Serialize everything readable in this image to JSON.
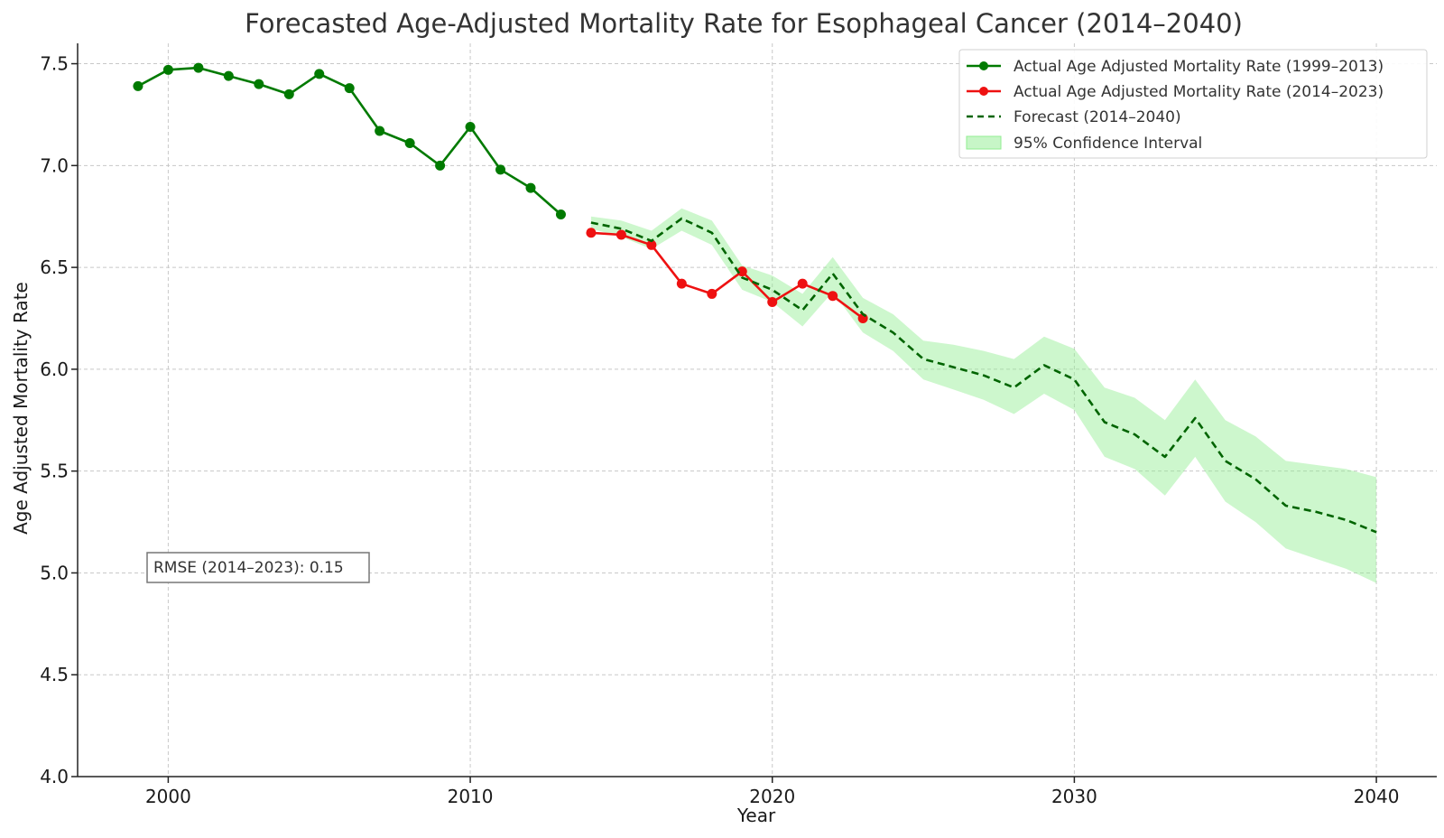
{
  "chart_data": {
    "type": "line",
    "title": "Forecasted Age-Adjusted Mortality Rate for Esophageal Cancer (2014–2040)",
    "xlabel": "Year",
    "ylabel": "Age Adjusted Mortality Rate",
    "xlim": [
      1997,
      2042
    ],
    "ylim": [
      4.0,
      7.6
    ],
    "xticks": [
      2000,
      2010,
      2020,
      2030,
      2040
    ],
    "yticks": [
      4.0,
      4.5,
      5.0,
      5.5,
      6.0,
      6.5,
      7.0,
      7.5
    ],
    "grid": true,
    "legend_position": "top-right",
    "annotation": "RMSE (2014–2023): 0.15",
    "series": [
      {
        "name": "Actual Age Adjusted Mortality Rate (1999–2013)",
        "style": "line-marker",
        "color": "#007a00",
        "x": [
          1999,
          2000,
          2001,
          2002,
          2003,
          2004,
          2005,
          2006,
          2007,
          2008,
          2009,
          2010,
          2011,
          2012,
          2013
        ],
        "y": [
          7.39,
          7.47,
          7.48,
          7.44,
          7.4,
          7.35,
          7.45,
          7.38,
          7.17,
          7.11,
          7.0,
          7.19,
          6.98,
          6.89,
          6.76
        ]
      },
      {
        "name": "Actual Age Adjusted Mortality Rate (2014–2023)",
        "style": "line-marker",
        "color": "#ee1111",
        "x": [
          2014,
          2015,
          2016,
          2017,
          2018,
          2019,
          2020,
          2021,
          2022,
          2023
        ],
        "y": [
          6.67,
          6.66,
          6.61,
          6.42,
          6.37,
          6.48,
          6.33,
          6.42,
          6.36,
          6.25
        ]
      },
      {
        "name": "Forecast (2014–2040)",
        "style": "dashed",
        "color": "#006400",
        "x": [
          2014,
          2015,
          2016,
          2017,
          2018,
          2019,
          2020,
          2021,
          2022,
          2023,
          2024,
          2025,
          2026,
          2027,
          2028,
          2029,
          2030,
          2031,
          2032,
          2033,
          2034,
          2035,
          2036,
          2037,
          2038,
          2039,
          2040
        ],
        "y": [
          6.72,
          6.69,
          6.63,
          6.74,
          6.67,
          6.45,
          6.39,
          6.29,
          6.47,
          6.27,
          6.18,
          6.05,
          6.01,
          5.97,
          5.91,
          6.02,
          5.95,
          5.74,
          5.68,
          5.57,
          5.76,
          5.55,
          5.46,
          5.33,
          5.3,
          5.26,
          5.2
        ]
      }
    ],
    "confidence_interval": {
      "name": "95% Confidence Interval",
      "color": "#90ee90",
      "x": [
        2014,
        2015,
        2016,
        2017,
        2018,
        2019,
        2020,
        2021,
        2022,
        2023,
        2024,
        2025,
        2026,
        2027,
        2028,
        2029,
        2030,
        2031,
        2032,
        2033,
        2034,
        2035,
        2036,
        2037,
        2038,
        2039,
        2040
      ],
      "lower": [
        6.69,
        6.65,
        6.59,
        6.68,
        6.61,
        6.39,
        6.33,
        6.21,
        6.38,
        6.18,
        6.09,
        5.95,
        5.9,
        5.85,
        5.78,
        5.88,
        5.8,
        5.57,
        5.51,
        5.38,
        5.57,
        5.35,
        5.25,
        5.12,
        5.07,
        5.02,
        4.95
      ],
      "upper": [
        6.75,
        6.73,
        6.68,
        6.79,
        6.73,
        6.51,
        6.46,
        6.37,
        6.55,
        6.35,
        6.27,
        6.14,
        6.12,
        6.09,
        6.05,
        6.16,
        6.1,
        5.91,
        5.86,
        5.75,
        5.95,
        5.75,
        5.67,
        5.55,
        5.53,
        5.51,
        5.47
      ]
    }
  }
}
